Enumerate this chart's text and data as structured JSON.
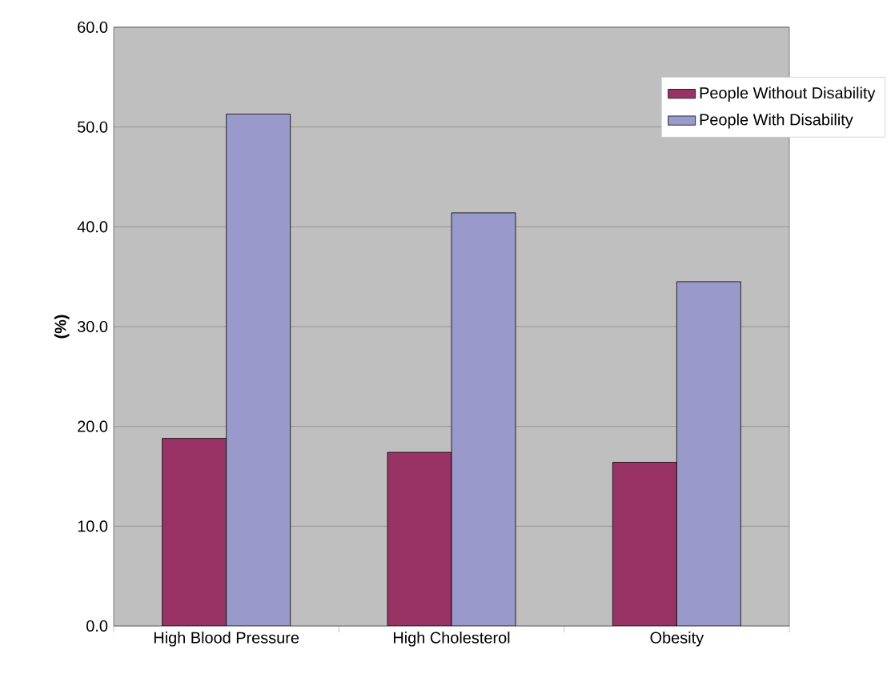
{
  "chart_data": {
    "type": "bar",
    "ylabel": "**(%)**",
    "categories": [
      "High Blood Pressure",
      "High Cholesterol",
      "Obesity"
    ],
    "series": [
      {
        "name": "People Without Disability",
        "color": "#993366",
        "values": [
          18.8,
          17.4,
          16.4
        ]
      },
      {
        "name": "People With Disability",
        "color": "#9999cc",
        "values": [
          51.3,
          41.4,
          34.5
        ]
      }
    ],
    "ylim": [
      0,
      60
    ],
    "yticks": [
      {
        "value": 0,
        "label": "0.0"
      },
      {
        "value": 10,
        "label": "10.0"
      },
      {
        "value": 20,
        "label": "20.0"
      },
      {
        "value": 30,
        "label": "30.0"
      },
      {
        "value": 40,
        "label": "40.0"
      },
      {
        "value": 50,
        "label": "50.0"
      },
      {
        "value": 60,
        "label": "60.0"
      }
    ],
    "grid": "y",
    "legend": "top right"
  }
}
